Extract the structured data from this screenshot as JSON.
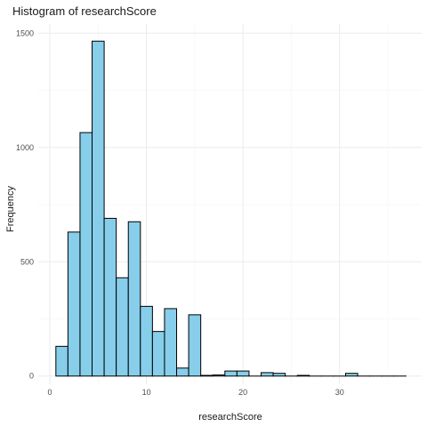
{
  "chart_data": {
    "type": "bar",
    "title": "Histogram of researchScore",
    "xlabel": "researchScore",
    "ylabel": "Frequency",
    "bin_width": 1.25,
    "bins": [
      {
        "x0": 0.625,
        "x1": 1.875,
        "count": 130
      },
      {
        "x0": 1.875,
        "x1": 3.125,
        "count": 630
      },
      {
        "x0": 3.125,
        "x1": 4.375,
        "count": 1065
      },
      {
        "x0": 4.375,
        "x1": 5.625,
        "count": 1465
      },
      {
        "x0": 5.625,
        "x1": 6.875,
        "count": 690
      },
      {
        "x0": 6.875,
        "x1": 8.125,
        "count": 430
      },
      {
        "x0": 8.125,
        "x1": 9.375,
        "count": 675
      },
      {
        "x0": 9.375,
        "x1": 10.625,
        "count": 305
      },
      {
        "x0": 10.625,
        "x1": 11.875,
        "count": 195
      },
      {
        "x0": 11.875,
        "x1": 13.125,
        "count": 295
      },
      {
        "x0": 13.125,
        "x1": 14.375,
        "count": 35
      },
      {
        "x0": 14.375,
        "x1": 15.625,
        "count": 268
      },
      {
        "x0": 15.625,
        "x1": 16.875,
        "count": 3
      },
      {
        "x0": 16.875,
        "x1": 18.125,
        "count": 5
      },
      {
        "x0": 18.125,
        "x1": 19.375,
        "count": 22
      },
      {
        "x0": 19.375,
        "x1": 20.625,
        "count": 22
      },
      {
        "x0": 20.625,
        "x1": 21.875,
        "count": 0
      },
      {
        "x0": 21.875,
        "x1": 23.125,
        "count": 15
      },
      {
        "x0": 23.125,
        "x1": 24.375,
        "count": 12
      },
      {
        "x0": 24.375,
        "x1": 25.625,
        "count": 0
      },
      {
        "x0": 25.625,
        "x1": 26.875,
        "count": 3
      },
      {
        "x0": 26.875,
        "x1": 28.125,
        "count": 0
      },
      {
        "x0": 28.125,
        "x1": 29.375,
        "count": 0
      },
      {
        "x0": 29.375,
        "x1": 30.625,
        "count": 0
      },
      {
        "x0": 30.625,
        "x1": 31.875,
        "count": 12
      },
      {
        "x0": 31.875,
        "x1": 33.125,
        "count": 0
      },
      {
        "x0": 33.125,
        "x1": 34.375,
        "count": 0
      },
      {
        "x0": 34.375,
        "x1": 35.625,
        "count": 0
      },
      {
        "x0": 35.625,
        "x1": 36.875,
        "count": 0
      }
    ],
    "x_ticks": [
      0,
      10,
      20,
      30
    ],
    "y_ticks": [
      0,
      500,
      1000,
      1500
    ],
    "xlim": [
      -1.2,
      38.5
    ],
    "ylim": [
      -36,
      1540
    ],
    "grid": true,
    "colors": {
      "bar_fill": "#87CEEB",
      "bar_outline": "#000000",
      "grid_major": "#EBEBEB",
      "grid_minor": "#F4F4F4"
    }
  }
}
